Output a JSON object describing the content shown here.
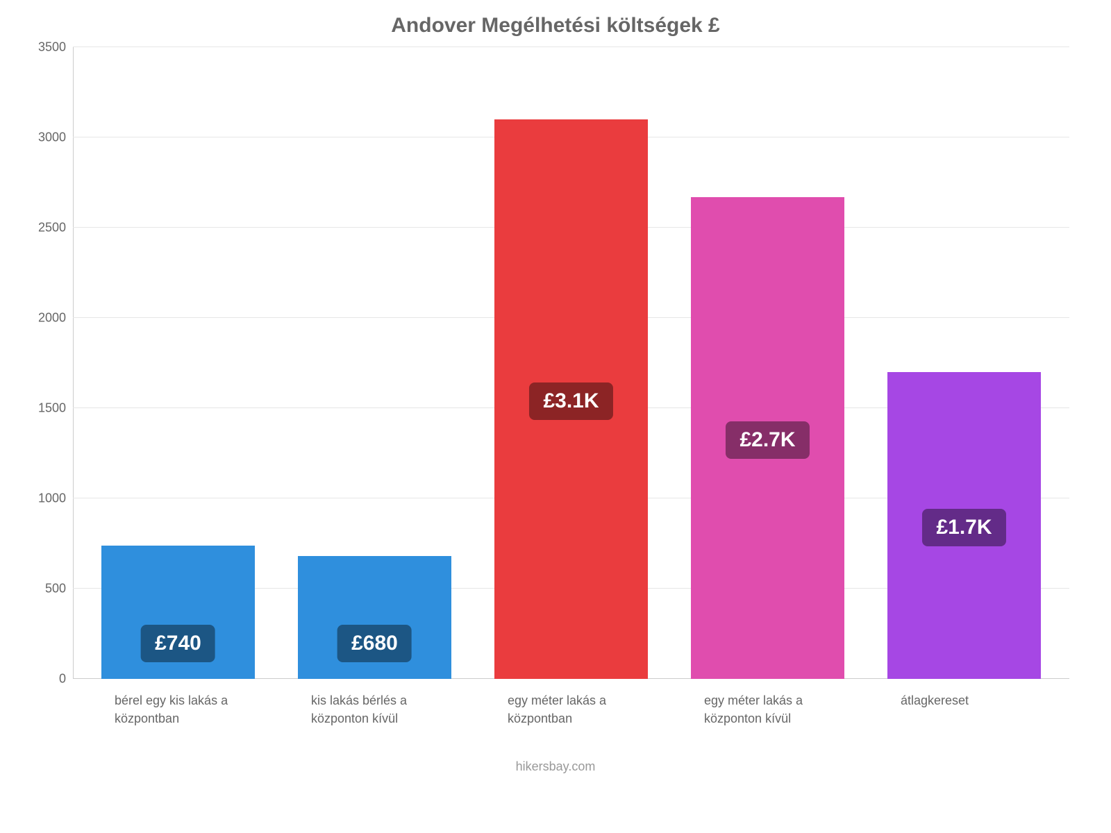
{
  "chart": {
    "type": "bar",
    "title": "Andover Megélhetési költségek £",
    "title_color": "#666666",
    "title_fontsize": 30,
    "background_color": "#ffffff",
    "grid_color": "#e6e6e6",
    "axis_line_color": "#cccccc",
    "ylim": [
      0,
      3500
    ],
    "ytick_step": 500,
    "yticks": [
      0,
      500,
      1000,
      1500,
      2000,
      2500,
      3000,
      3500
    ],
    "tick_label_color": "#666666",
    "tick_label_fontsize": 18,
    "bar_width": 0.78,
    "badge_fontsize": 30,
    "badge_text_color": "#ffffff",
    "x_label_color": "#666666",
    "x_label_fontsize": 18,
    "bars": [
      {
        "category": "bérel egy kis lakás a központban",
        "value": 740,
        "display": "£740",
        "bar_color": "#2f8fdd",
        "badge_color": "#1c5684"
      },
      {
        "category": "kis lakás bérlés a központon kívül",
        "value": 680,
        "display": "£680",
        "bar_color": "#2f8fdd",
        "badge_color": "#1c5684"
      },
      {
        "category": "egy méter lakás a központban",
        "value": 3100,
        "display": "£3.1K",
        "bar_color": "#ea3c3e",
        "badge_color": "#8c2425"
      },
      {
        "category": "egy méter lakás a központon kívül",
        "value": 2670,
        "display": "£2.7K",
        "bar_color": "#e04dae",
        "badge_color": "#862e68"
      },
      {
        "category": "átlagkereset",
        "value": 1700,
        "display": "£1.7K",
        "bar_color": "#a647e4",
        "badge_color": "#632b88"
      }
    ]
  },
  "footer": {
    "text": "hikersbay.com",
    "color": "#999999",
    "fontsize": 18
  }
}
